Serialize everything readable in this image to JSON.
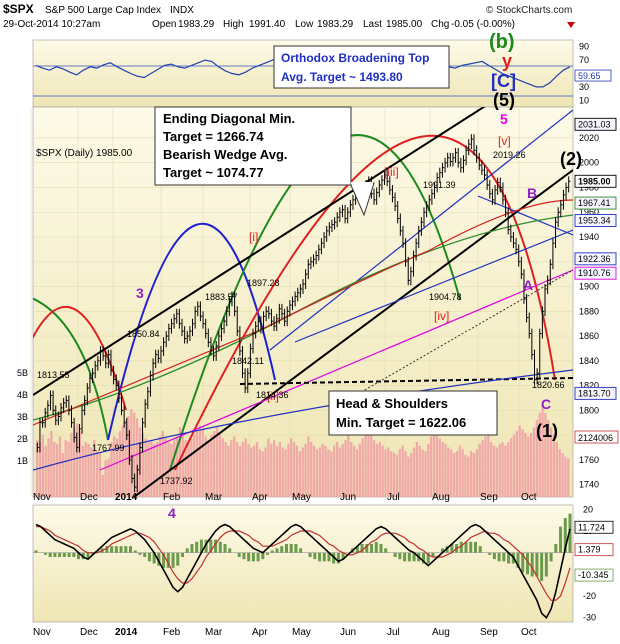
{
  "header": {
    "symbol": "$SPX",
    "name": "S&P 500 Large Cap Index",
    "exchange": "INDX",
    "date": "29-Oct-2014 10:27am",
    "open_label": "Open",
    "open": "1983.29",
    "high_label": "High",
    "high": "1991.40",
    "low_label": "Low",
    "low": "1983.29",
    "last_label": "Last",
    "last": "1985.00",
    "chg_label": "Chg",
    "chg": "-0.05 (-0.00%)",
    "watermark": "© StockCharts.com",
    "panel_label": "$SPX (Daily) 1985.00"
  },
  "colors": {
    "background_top": "#fdfae6",
    "background_bottom": "#f0e8b8",
    "candles": "#000000",
    "ma_fast": "#d32020",
    "ma_mid": "#2a8a2a",
    "ma_slow": "#e000e0",
    "trend_channel": "#000000",
    "blue_channel": "#2030c0",
    "rsi_line": "#2040b0",
    "volume": "#f0a8a8",
    "macd_hist": "#6a9a4a"
  },
  "annotations": {
    "orthodox_title": "Orthodox Broadening Top",
    "orthodox_target": "Avg. Target ~ 1493.80",
    "ending_diag_1": "Ending Diagonal Min.",
    "ending_diag_2": "Target = 1266.74",
    "ending_diag_3": "Bearish Wedge Avg.",
    "ending_diag_4": "Target ~ 1074.77",
    "hs_1": "Head & Shoulders",
    "hs_2": "Min. Target = 1622.06",
    "wave_b_green": "(b)",
    "wave_y": "y",
    "wave_c_blue": "[C]",
    "wave_5_black": "(5)",
    "wave_5_red": "5",
    "wave_v": "[v]",
    "wave_iii": "[iii]",
    "wave_i": "[i]",
    "wave_ii": "[ii]",
    "wave_iv": "[iv]",
    "wave_3": "3",
    "wave_4": "4",
    "wave_B": "B",
    "wave_A": "A",
    "wave_C": "C",
    "wave_1": "(1)",
    "wave_2": "(2)",
    "price_1813_55": "1813.55",
    "price_1850_84": "1850.84",
    "price_1767_99": "1767.99",
    "price_1737_92": "1737.92",
    "price_1883_57": "1883.57",
    "price_1842_11": "1842.11",
    "price_1897_28": "1897.28",
    "price_1814_36": "1814.36",
    "price_1991_39": "1991.39",
    "price_1904_78": "1904.78",
    "price_2019_26": "2019.26",
    "price_1820_66": "1820.66"
  },
  "right_axis_labels": {
    "rsi_ticks": [
      "90",
      "70",
      "50",
      "30",
      "10"
    ],
    "rsi_value": "59.65",
    "price_ticks": [
      "2020",
      "2000",
      "1980",
      "1960",
      "1940",
      "1920",
      "1900",
      "1880",
      "1860",
      "1840",
      "1820",
      "1800",
      "1780",
      "1760",
      "1740"
    ],
    "price_tags": [
      {
        "text": "2031.03",
        "value": 2031.03
      },
      {
        "text": "1985.00",
        "value": 1985.0
      },
      {
        "text": "1967.41",
        "value": 1967.41
      },
      {
        "text": "1953.34",
        "value": 1953.34
      },
      {
        "text": "1922.36",
        "value": 1922.36
      },
      {
        "text": "1910.76",
        "value": 1910.76
      },
      {
        "text": "1813.70",
        "value": 1813.7
      }
    ],
    "volume_tag": "2124006",
    "macd_ticks": [
      "20",
      "10",
      "0",
      "-10",
      "-20",
      "-30"
    ],
    "macd_tags": [
      "11.724",
      "1.379",
      "-10.345"
    ]
  },
  "left_axis_labels": [
    "5B",
    "4B",
    "3B",
    "2B",
    "1B"
  ],
  "x_axis": {
    "labels": [
      "Nov",
      "Dec",
      "2014",
      "Feb",
      "Mar",
      "Apr",
      "May",
      "Jun",
      "Jul",
      "Aug",
      "Sep",
      "Oct"
    ]
  },
  "chart_data": [
    {
      "type": "line",
      "panel": "RSI",
      "ylim": [
        0,
        100
      ],
      "values": [
        62,
        58,
        55,
        60,
        57,
        52,
        48,
        55,
        60,
        58,
        63,
        66,
        60,
        55,
        50,
        46,
        44,
        50,
        56,
        62,
        64,
        60,
        58,
        62,
        66,
        70,
        68,
        60,
        54,
        50,
        48,
        52,
        58,
        62,
        66,
        70,
        72,
        68,
        65,
        60,
        56,
        58,
        60,
        62,
        64,
        66,
        63,
        58,
        52,
        48,
        44,
        40,
        36,
        32,
        34,
        40,
        48,
        56,
        62,
        66,
        68,
        60,
        58,
        62,
        64,
        66,
        68,
        62,
        56,
        50,
        46,
        42,
        38,
        34,
        30,
        30,
        36,
        46,
        55,
        60
      ]
    },
    {
      "type": "bar",
      "subtype": "ohlc",
      "panel": "price",
      "ylim": [
        1730,
        2045
      ],
      "close": [
        1770,
        1790,
        1790,
        1798,
        1804,
        1812,
        1800,
        1792,
        1795,
        1802,
        1806,
        1808,
        1800,
        1790,
        1778,
        1770,
        1785,
        1800,
        1808,
        1818,
        1826,
        1830,
        1836,
        1840,
        1848,
        1844,
        1838,
        1845,
        1832,
        1825,
        1820,
        1810,
        1800,
        1790,
        1780,
        1760,
        1745,
        1738,
        1752,
        1770,
        1790,
        1805,
        1815,
        1828,
        1838,
        1845,
        1842,
        1848,
        1855,
        1860,
        1866,
        1870,
        1874,
        1878,
        1870,
        1864,
        1858,
        1860,
        1864,
        1870,
        1880,
        1884,
        1876,
        1870,
        1862,
        1855,
        1848,
        1844,
        1852,
        1860,
        1866,
        1872,
        1880,
        1888,
        1892,
        1880,
        1864,
        1848,
        1830,
        1818,
        1830,
        1850,
        1862,
        1868,
        1872,
        1866,
        1876,
        1880,
        1878,
        1872,
        1868,
        1874,
        1882,
        1878,
        1872,
        1880,
        1885,
        1888,
        1892,
        1895,
        1898,
        1902,
        1910,
        1918,
        1920,
        1922,
        1925,
        1930,
        1935,
        1940,
        1945,
        1948,
        1950,
        1952,
        1956,
        1960,
        1962,
        1955,
        1960,
        1966,
        1970,
        1974,
        1978,
        1972,
        1976,
        1982,
        1985,
        1975,
        1970,
        1976,
        1982,
        1986,
        1990,
        1985,
        1978,
        1972,
        1965,
        1955,
        1945,
        1935,
        1920,
        1905,
        1912,
        1925,
        1935,
        1945,
        1952,
        1960,
        1965,
        1970,
        1975,
        1980,
        1988,
        1992,
        1996,
        2000,
        2004,
        2001,
        2004,
        2008,
        2000,
        1996,
        2002,
        2010,
        2015,
        2019,
        2010,
        2004,
        1998,
        1994,
        1990,
        1982,
        1975,
        1970,
        1978,
        1984,
        1980,
        1970,
        1960,
        1946,
        1940,
        1935,
        1930,
        1920,
        1910,
        1890,
        1875,
        1862,
        1845,
        1825,
        1830,
        1862,
        1880,
        1898,
        1905,
        1918,
        1935,
        1952,
        1960,
        1966,
        1974,
        1980,
        1985
      ]
    },
    {
      "type": "bar",
      "panel": "volume",
      "ylim": [
        0,
        6000000000
      ],
      "values": [
        3.1,
        3.0,
        3.4,
        2.8,
        3.2,
        3.6,
        3.0,
        2.9,
        3.3,
        2.4,
        3.1,
        3.0,
        3.5,
        3.8,
        4.0,
        3.6,
        2.8,
        3.0,
        2.9,
        2.7,
        3.1,
        2.5,
        2.4,
        1.2,
        2.0,
        2.1,
        3.0,
        3.3,
        3.2,
        3.6,
        3.9,
        4.2,
        4.4,
        4.8,
        4.6,
        4.3,
        3.8,
        3.5,
        3.2,
        3.0,
        3.1,
        2.9,
        3.0,
        3.3,
        3.6,
        3.2,
        3.0,
        2.9,
        3.1,
        3.3,
        3.8,
        3.5,
        3.1,
        3.0,
        3.2,
        3.4,
        3.6,
        3.9,
        3.7,
        3.3,
        3.1,
        3.4,
        3.6,
        3.8,
        3.4,
        3.2,
        3.0,
        2.8,
        3.1,
        3.3,
        3.0,
        2.8,
        3.0,
        3.2,
        2.9,
        2.7,
        2.8,
        3.0,
        2.6,
        2.5,
        2.7,
        3.2,
        2.9,
        3.1,
        2.8,
        3.0,
        2.7,
        2.6,
        2.9,
        3.2,
        3.0,
        2.8,
        2.5,
        2.7,
        2.9,
        3.3,
        3.0,
        2.8,
        2.6,
        2.7,
        2.9,
        2.8,
        2.6,
        2.5,
        2.8,
        3.0,
        2.7,
        2.9,
        3.1,
        3.4,
        3.0,
        2.8,
        2.6,
        2.9,
        3.2,
        3.6,
        3.8,
        3.4,
        3.1,
        2.9,
        3.0,
        2.8,
        2.6,
        2.7,
        2.5,
        2.4,
        2.3,
        2.6,
        2.8,
        2.5,
        2.2,
        2.4,
        2.7,
        3.0,
        2.8,
        2.6,
        2.5,
        2.9,
        3.3,
        3.6,
        3.8,
        3.2,
        3.0,
        2.9,
        2.7,
        2.6,
        2.4,
        2.5,
        2.8,
        2.6,
        2.3,
        2.2,
        2.5,
        2.4,
        2.6,
        2.9,
        3.1,
        3.3,
        3.5,
        3.0,
        2.8,
        2.7,
        2.9,
        3.0,
        2.8,
        3.0,
        3.2,
        3.4,
        3.6,
        3.9,
        3.7,
        3.5,
        3.3,
        3.5,
        3.8,
        4.2,
        4.6,
        5.0,
        4.6,
        4.2,
        3.8,
        3.4,
        3.0,
        2.6,
        2.4,
        2.2,
        2.1
      ]
    },
    {
      "type": "line",
      "panel": "MACD",
      "ylim": [
        -32,
        22
      ],
      "series": [
        {
          "values": [
            13,
            12,
            10,
            8,
            6,
            5,
            4,
            3,
            2,
            0,
            -2,
            -3,
            -1,
            1,
            3,
            5,
            7,
            8,
            9,
            10,
            11,
            10,
            8,
            6,
            3,
            0,
            -4,
            -8,
            -12,
            -16,
            -18,
            -16,
            -12,
            -8,
            -4,
            0,
            4,
            7,
            10,
            12,
            13,
            12,
            10,
            8,
            6,
            4,
            2,
            1,
            0,
            2,
            4,
            6,
            8,
            10,
            12,
            13,
            12,
            10,
            8,
            6,
            4,
            2,
            0,
            -2,
            -4,
            -3,
            -1,
            1,
            3,
            5,
            7,
            9,
            11,
            12,
            11,
            9,
            7,
            5,
            3,
            1,
            0,
            -2,
            -4,
            -6,
            -4,
            -2,
            0,
            2,
            4,
            6,
            8,
            10,
            12,
            13,
            12,
            10,
            8,
            6,
            4,
            2,
            0,
            -2,
            -6,
            -10,
            -14,
            -18,
            -22,
            -28,
            -30,
            -26,
            -18,
            -8,
            2,
            11
          ]
        },
        {
          "values": [
            12,
            12,
            11,
            10,
            8,
            7,
            6,
            5,
            4,
            3,
            1,
            0,
            0,
            0,
            1,
            2,
            4,
            5,
            6,
            7,
            8,
            9,
            9,
            8,
            7,
            5,
            2,
            -1,
            -5,
            -9,
            -12,
            -14,
            -14,
            -12,
            -9,
            -6,
            -2,
            1,
            4,
            7,
            9,
            10,
            10,
            10,
            9,
            8,
            6,
            5,
            3,
            3,
            3,
            4,
            5,
            6,
            8,
            9,
            10,
            10,
            10,
            9,
            8,
            6,
            4,
            3,
            1,
            0,
            -1,
            -1,
            0,
            1,
            3,
            5,
            6,
            8,
            9,
            9,
            9,
            8,
            7,
            5,
            4,
            2,
            1,
            -1,
            -2,
            -2,
            -2,
            -1,
            0,
            2,
            3,
            5,
            7,
            8,
            9,
            10,
            9,
            9,
            8,
            6,
            5,
            3,
            1,
            -1,
            -4,
            -7,
            -11,
            -15,
            -19,
            -22,
            -22,
            -20,
            -14,
            -7
          ]
        }
      ]
    }
  ]
}
